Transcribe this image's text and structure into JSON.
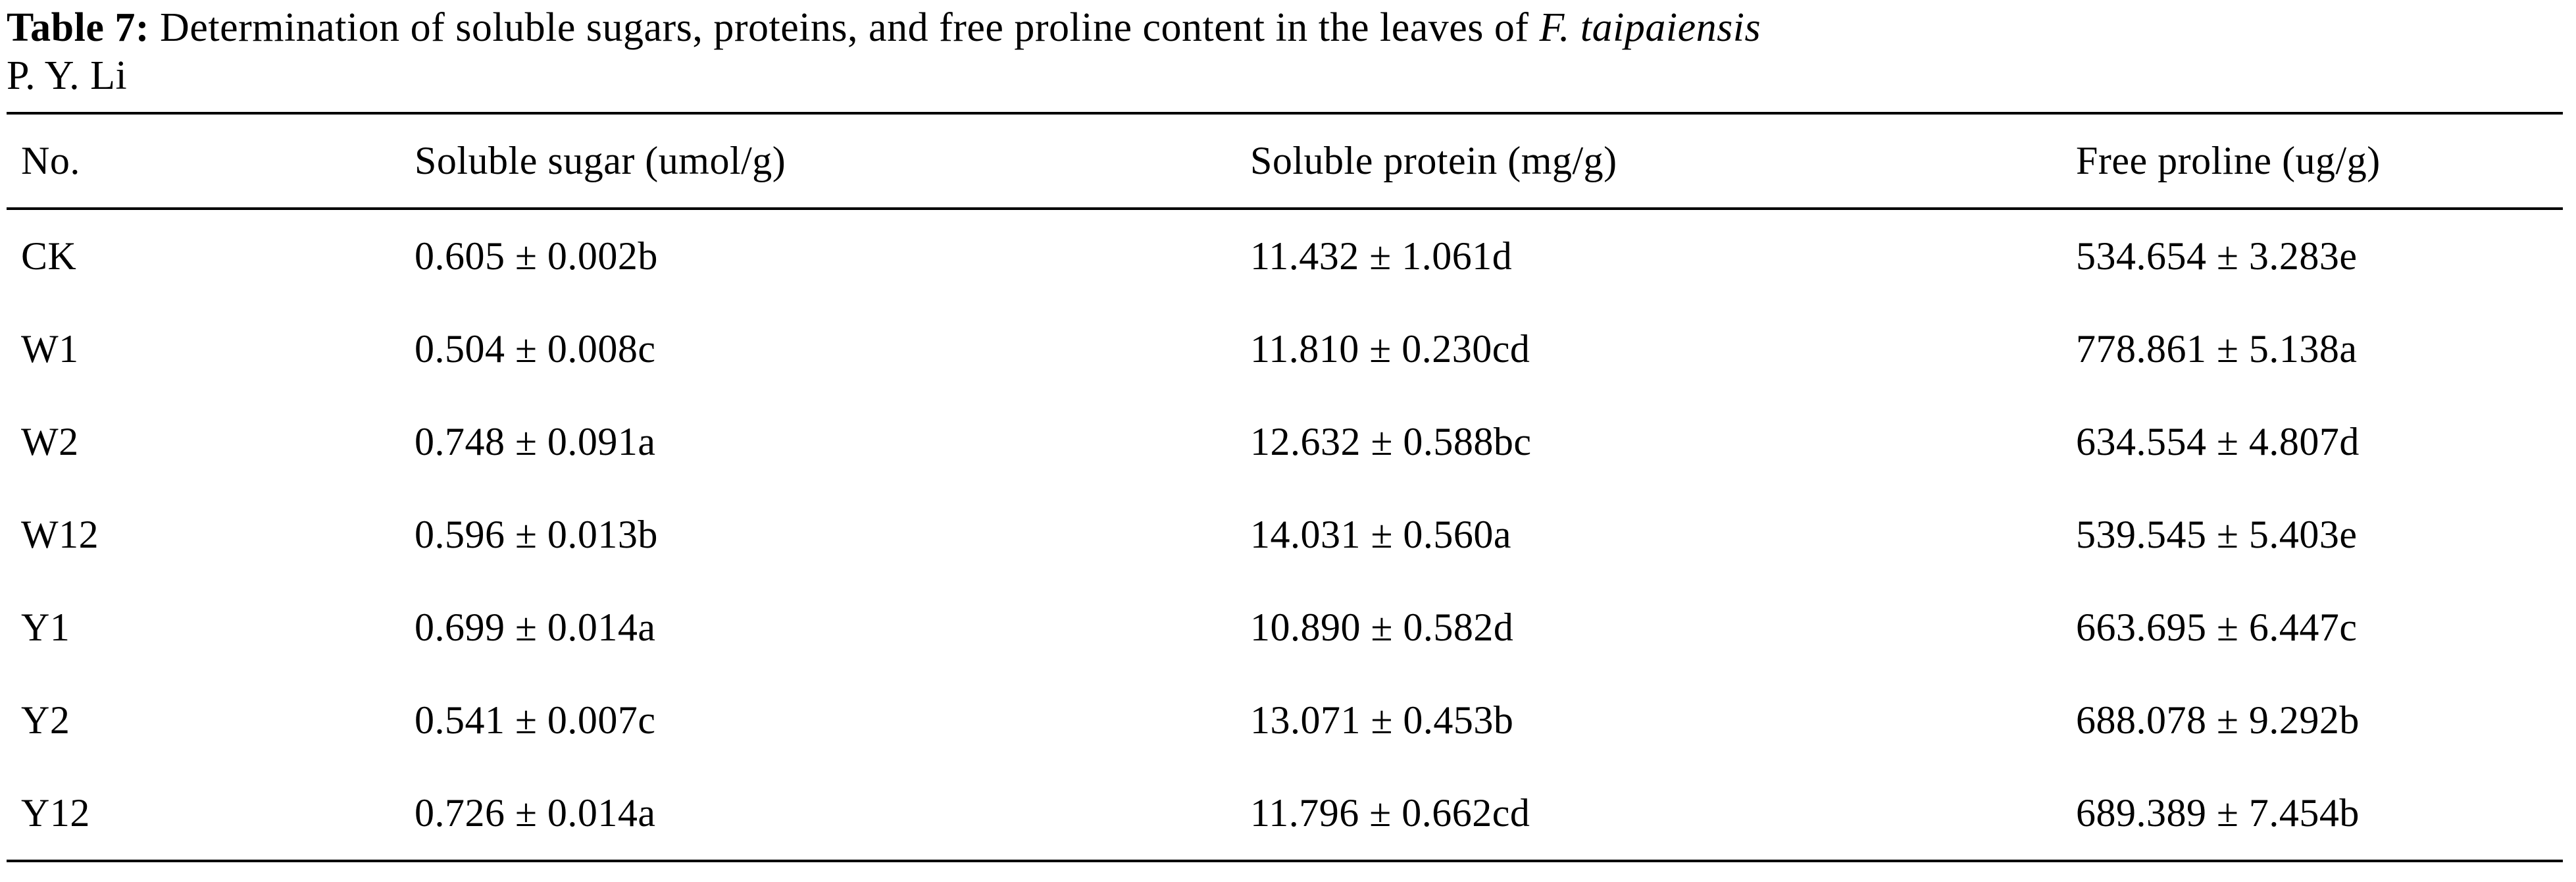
{
  "caption": {
    "label": "Table 7:",
    "body": "Determination of soluble sugars, proteins, and free proline content in the leaves of",
    "species": "F. taipaiensis",
    "continuation": "P. Y. Li"
  },
  "table": {
    "headers": [
      "No.",
      "Soluble sugar (umol/g)",
      "Soluble protein (mg/g)",
      "Free proline (ug/g)"
    ],
    "rows": [
      [
        "CK",
        "0.605 ± 0.002b",
        "11.432 ± 1.061d",
        "534.654 ± 3.283e"
      ],
      [
        "W1",
        "0.504 ± 0.008c",
        "11.810 ± 0.230cd",
        "778.861 ± 5.138a"
      ],
      [
        "W2",
        "0.748 ± 0.091a",
        "12.632 ± 0.588bc",
        "634.554 ± 4.807d"
      ],
      [
        "W12",
        "0.596 ± 0.013b",
        "14.031 ± 0.560a",
        "539.545 ± 5.403e"
      ],
      [
        "Y1",
        "0.699 ± 0.014a",
        "10.890 ± 0.582d",
        "663.695 ± 6.447c"
      ],
      [
        "Y2",
        "0.541 ± 0.007c",
        "13.071 ± 0.453b",
        "688.078 ± 9.292b"
      ],
      [
        "Y12",
        "0.726 ± 0.014a",
        "11.796 ± 0.662cd",
        "689.389 ± 7.454b"
      ]
    ]
  }
}
